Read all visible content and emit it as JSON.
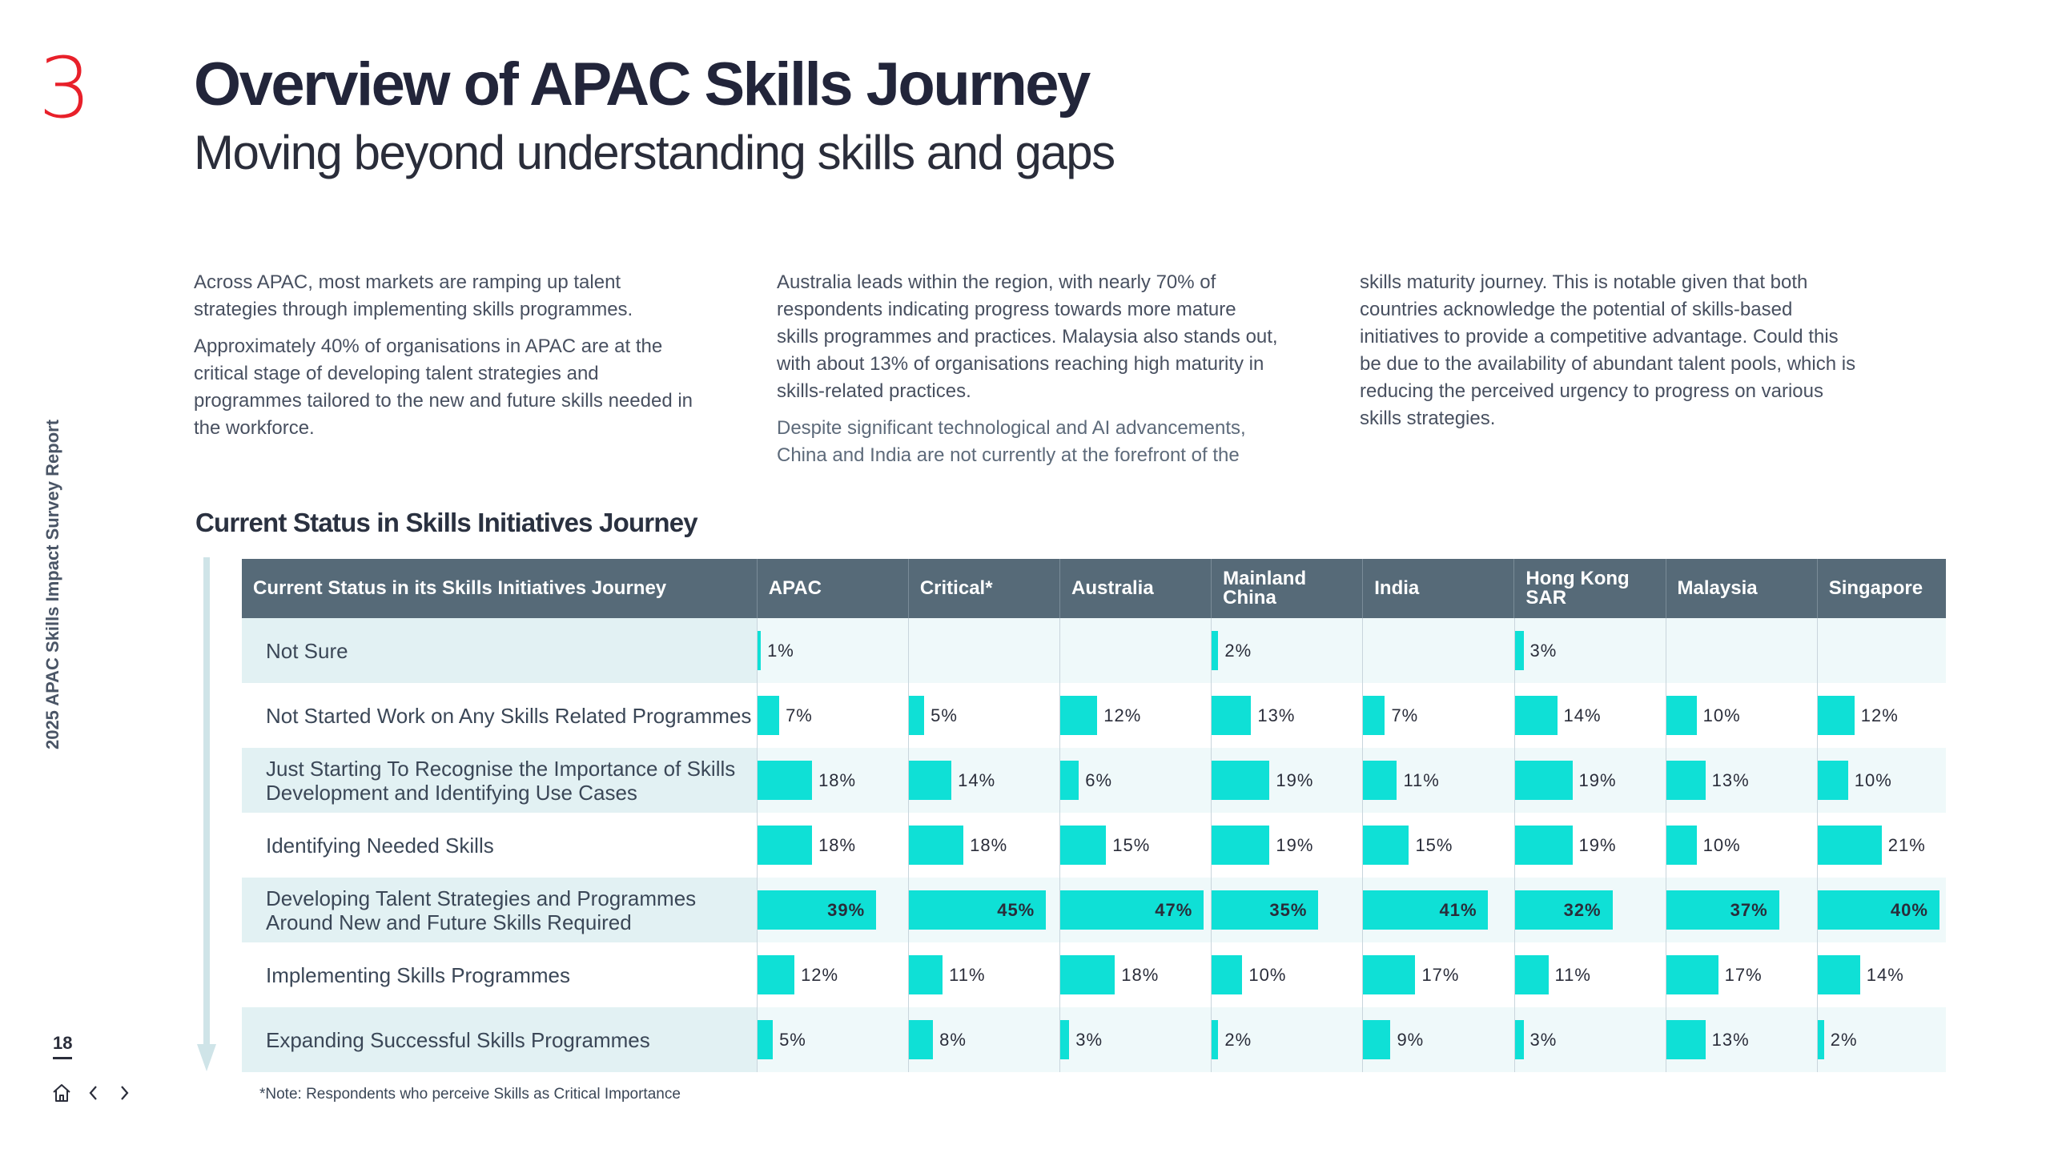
{
  "header": {
    "section_number": "3",
    "title": "Overview of APAC Skills Journey",
    "subtitle": "Moving beyond understanding skills and gaps"
  },
  "sidebar": {
    "report_label": "2025 APAC Skills Impact Survey Report",
    "page_number": "18"
  },
  "body": {
    "col1": [
      "Across APAC, most markets are ramping up talent strategies through implementing skills programmes.",
      "Approximately 40% of organisations in APAC are at the critical stage of developing talent strategies and programmes tailored to the new and future skills needed in the workforce."
    ],
    "col2": [
      "Australia leads within the region, with nearly 70% of respondents indicating progress towards more mature skills programmes and practices. Malaysia also stands out, with about 13% of organisations reaching high maturity in skills-related practices.",
      "Despite significant technological and AI advancements, China and India are not currently at the forefront of the"
    ],
    "col3": [
      "skills maturity journey. This is notable given that both countries acknowledge the potential of skills-based initiatives to provide a competitive advantage. Could this be due to the availability of abundant talent pools, which is reducing the perceived urgency to progress on various skills strategies."
    ]
  },
  "chart": {
    "title": "Current Status in Skills Initiatives Journey",
    "note": "*Note: Respondents who perceive Skills as Critical Importance"
  },
  "chart_data": {
    "type": "table",
    "title": "Current Status in Skills Initiatives Journey",
    "header_label": "Current Status in its Skills Initiatives Journey",
    "columns": [
      "APAC",
      "Critical*",
      "Australia",
      "Mainland China",
      "India",
      "Hong Kong SAR",
      "Malaysia",
      "Singapore"
    ],
    "rows": [
      {
        "label": "Not Sure",
        "values": [
          1,
          null,
          null,
          2,
          null,
          3,
          null,
          null
        ]
      },
      {
        "label": "Not Started Work on Any Skills Related Programmes",
        "values": [
          7,
          5,
          12,
          13,
          7,
          14,
          10,
          12
        ]
      },
      {
        "label": "Just Starting To Recognise the Importance of Skills Development and Identifying Use Cases",
        "values": [
          18,
          14,
          6,
          19,
          11,
          19,
          13,
          10
        ]
      },
      {
        "label": "Identifying Needed Skills",
        "values": [
          18,
          18,
          15,
          19,
          15,
          19,
          10,
          21
        ]
      },
      {
        "label": "Developing Talent Strategies and Programmes Around New and Future Skills Required",
        "values": [
          39,
          45,
          47,
          35,
          41,
          32,
          37,
          40
        ]
      },
      {
        "label": "Implementing Skills Programmes",
        "values": [
          12,
          11,
          18,
          10,
          17,
          11,
          17,
          14
        ]
      },
      {
        "label": "Expanding Successful Skills Programmes",
        "values": [
          5,
          8,
          3,
          2,
          9,
          3,
          13,
          2
        ]
      }
    ],
    "unit": "%",
    "bar_color": "#0fe0d6",
    "header_color": "#566a78"
  },
  "colors": {
    "accent": "#e8202a",
    "bar": "#0fe0d6",
    "header": "#566a78"
  }
}
